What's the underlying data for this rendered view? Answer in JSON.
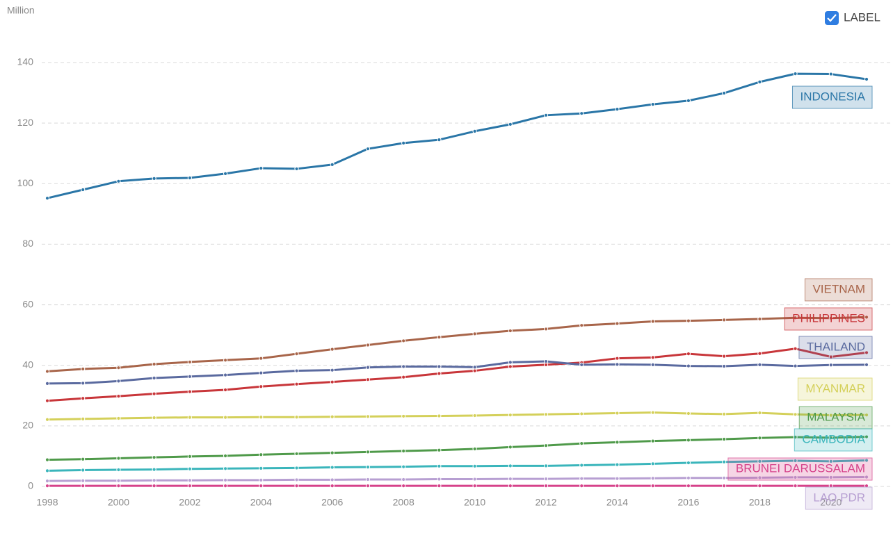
{
  "chart_data": {
    "type": "line",
    "y_label": "Million",
    "label_toggle": "LABEL",
    "x": [
      1998,
      1999,
      2000,
      2001,
      2002,
      2003,
      2004,
      2005,
      2006,
      2007,
      2008,
      2009,
      2010,
      2011,
      2012,
      2013,
      2014,
      2015,
      2016,
      2017,
      2018,
      2019,
      2020,
      2021
    ],
    "xlim": [
      1998,
      2021
    ],
    "xticks": [
      1998,
      2000,
      2002,
      2004,
      2006,
      2008,
      2010,
      2012,
      2014,
      2016,
      2018,
      2020
    ],
    "ylim": [
      0,
      140
    ],
    "yticks": [
      0,
      20,
      40,
      60,
      80,
      100,
      120,
      140
    ],
    "grid": true,
    "series": [
      {
        "name": "INDONESIA",
        "color": "#2a76a7",
        "values": [
          95.2,
          98.0,
          100.8,
          101.7,
          101.9,
          103.3,
          105.1,
          104.9,
          106.3,
          111.5,
          113.4,
          114.5,
          117.3,
          119.6,
          122.6,
          123.2,
          124.6,
          126.2,
          127.4,
          129.9,
          133.6,
          136.3,
          136.2,
          134.5
        ]
      },
      {
        "name": "VIETNAM",
        "color": "#a8654a",
        "values": [
          38.0,
          38.8,
          39.2,
          40.4,
          41.1,
          41.7,
          42.3,
          43.8,
          45.3,
          46.7,
          48.1,
          49.3,
          50.4,
          51.4,
          52.0,
          53.2,
          53.8,
          54.5,
          54.7,
          55.0,
          55.3,
          55.7,
          55.6,
          55.9
        ]
      },
      {
        "name": "PHILIPPINES",
        "color": "#c8363a",
        "values": [
          28.3,
          29.1,
          29.8,
          30.6,
          31.3,
          31.9,
          33.0,
          33.8,
          34.5,
          35.3,
          36.1,
          37.3,
          38.2,
          39.6,
          40.2,
          40.9,
          42.3,
          42.6,
          43.8,
          43.0,
          43.9,
          45.5,
          42.8,
          44.2
        ]
      },
      {
        "name": "THAILAND",
        "color": "#5a6a9f",
        "values": [
          34.0,
          34.1,
          34.8,
          35.8,
          36.3,
          36.8,
          37.5,
          38.2,
          38.4,
          39.3,
          39.6,
          39.6,
          39.4,
          41.0,
          41.3,
          40.2,
          40.3,
          40.2,
          39.8,
          39.7,
          40.2,
          39.8,
          40.1,
          40.2
        ]
      },
      {
        "name": "MYANMAR",
        "color": "#d4d05a",
        "values": [
          22.1,
          22.3,
          22.5,
          22.7,
          22.8,
          22.8,
          22.9,
          22.9,
          23.0,
          23.1,
          23.2,
          23.3,
          23.4,
          23.6,
          23.8,
          24.0,
          24.2,
          24.4,
          24.1,
          23.9,
          24.3,
          23.8,
          23.5,
          23.6
        ]
      },
      {
        "name": "MALAYSIA",
        "color": "#4f9a4a",
        "values": [
          8.8,
          9.0,
          9.3,
          9.6,
          9.9,
          10.1,
          10.5,
          10.8,
          11.1,
          11.4,
          11.7,
          12.0,
          12.4,
          13.0,
          13.5,
          14.2,
          14.6,
          15.0,
          15.3,
          15.6,
          16.0,
          16.3,
          16.1,
          16.4
        ]
      },
      {
        "name": "CAMBODIA",
        "color": "#3ab5bb",
        "values": [
          5.2,
          5.4,
          5.5,
          5.6,
          5.8,
          5.9,
          6.0,
          6.1,
          6.3,
          6.4,
          6.5,
          6.7,
          6.7,
          6.8,
          6.8,
          7.0,
          7.2,
          7.5,
          7.8,
          8.1,
          8.3,
          8.5,
          8.3,
          8.6
        ]
      },
      {
        "name": "BRUNEI DARUSSALAM",
        "color": "#d6428a",
        "values": [
          0.2,
          0.2,
          0.2,
          0.2,
          0.2,
          0.2,
          0.2,
          0.2,
          0.2,
          0.2,
          0.2,
          0.2,
          0.2,
          0.2,
          0.2,
          0.2,
          0.2,
          0.2,
          0.2,
          0.2,
          0.2,
          0.2,
          0.2,
          0.2
        ]
      },
      {
        "name": "LAO PDR",
        "color": "#b79fd2",
        "values": [
          1.8,
          1.9,
          1.9,
          2.0,
          2.0,
          2.1,
          2.1,
          2.2,
          2.2,
          2.3,
          2.3,
          2.4,
          2.4,
          2.5,
          2.5,
          2.6,
          2.6,
          2.7,
          2.8,
          2.8,
          2.9,
          3.0,
          3.0,
          3.1
        ]
      }
    ]
  }
}
